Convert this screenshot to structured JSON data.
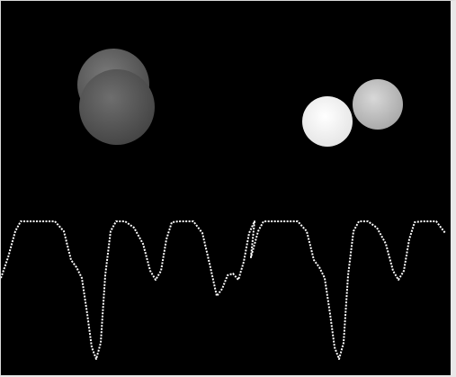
{
  "scene": {
    "background": "#000000",
    "spheres": [
      {
        "name": "gray-sphere-back",
        "color": "#5e5e5e",
        "highlight": "#7a7a7a",
        "brightness": 0.37
      },
      {
        "name": "gray-sphere-front",
        "color": "#555555",
        "highlight": "#6e6e6e",
        "brightness": 0.33
      },
      {
        "name": "white-sphere-front",
        "color": "#f4f4f4",
        "highlight": "#ffffff",
        "brightness": 0.96
      },
      {
        "name": "light-sphere-back",
        "color": "#bcbcbc",
        "highlight": "#d8d8d8",
        "brightness": 0.74
      }
    ],
    "waveform": {
      "color": "#ffffff",
      "style": "dotted",
      "periods": 2
    }
  }
}
